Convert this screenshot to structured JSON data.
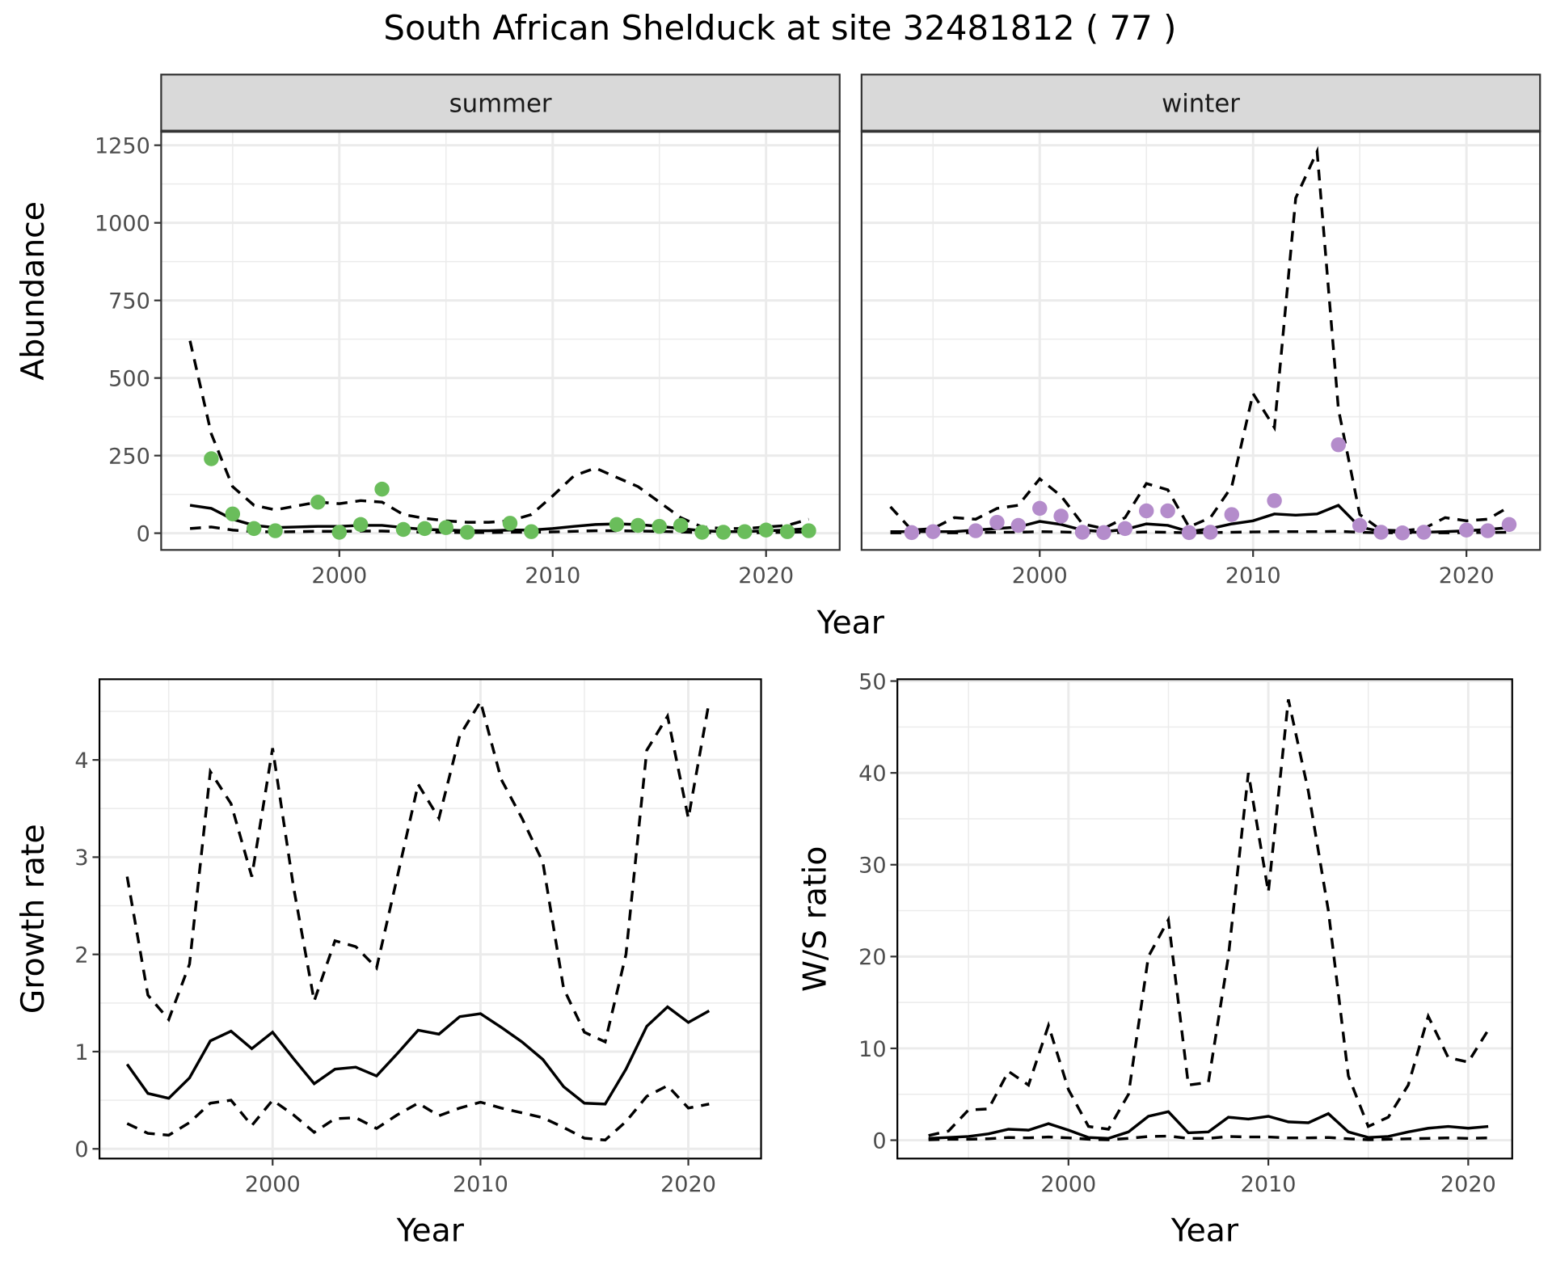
{
  "title": "South African Shelduck at site 32481812 ( 77 )",
  "colors": {
    "summer": "#6ABD5B",
    "winter": "#B48CCB",
    "line": "#000000",
    "strip": "#D9D9D9",
    "grid": "#EBEBEB"
  },
  "chart_data": [
    {
      "type": "line",
      "panel": "summer",
      "strip_label": "summer",
      "xlabel": "Year",
      "ylabel": "Abundance",
      "xlim": [
        1991.65,
        2023.45
      ],
      "ylim": [
        -54,
        1295
      ],
      "xticks": [
        2000,
        2010,
        2020
      ],
      "yticks": [
        0,
        250,
        500,
        750,
        1000,
        1250
      ],
      "x": [
        1993,
        1994,
        1995,
        1996,
        1997,
        1998,
        1999,
        2000,
        2001,
        2002,
        2003,
        2004,
        2005,
        2006,
        2007,
        2008,
        2009,
        2010,
        2011,
        2012,
        2013,
        2014,
        2015,
        2016,
        2017,
        2018,
        2019,
        2020,
        2021,
        2022
      ],
      "series": [
        {
          "name": "mean",
          "style": "solid",
          "values": [
            90,
            80,
            45,
            25,
            18,
            20,
            22,
            22,
            25,
            25,
            18,
            12,
            10,
            8,
            8,
            10,
            10,
            15,
            22,
            28,
            30,
            28,
            22,
            15,
            8,
            5,
            5,
            8,
            10,
            15
          ]
        },
        {
          "name": "upper",
          "style": "dashed",
          "values": [
            620,
            320,
            150,
            90,
            75,
            88,
            100,
            95,
            105,
            100,
            60,
            48,
            40,
            35,
            35,
            40,
            60,
            120,
            185,
            210,
            180,
            150,
            100,
            50,
            20,
            15,
            15,
            20,
            25,
            45
          ]
        },
        {
          "name": "lower",
          "style": "dashed",
          "values": [
            15,
            20,
            10,
            5,
            4,
            5,
            6,
            6,
            7,
            7,
            5,
            3,
            3,
            2,
            2,
            3,
            3,
            4,
            6,
            8,
            8,
            7,
            6,
            4,
            2,
            1,
            1,
            2,
            3,
            4
          ]
        }
      ],
      "points": {
        "x": [
          1994,
          1995,
          1996,
          1997,
          1999,
          2000,
          2001,
          2002,
          2003,
          2004,
          2005,
          2006,
          2008,
          2009,
          2013,
          2014,
          2015,
          2016,
          2017,
          2018,
          2019,
          2020,
          2021,
          2022
        ],
        "y": [
          240,
          62,
          15,
          8,
          100,
          3,
          28,
          142,
          12,
          15,
          18,
          3,
          32,
          5,
          28,
          25,
          22,
          25,
          3,
          3,
          5,
          10,
          5,
          8
        ]
      }
    },
    {
      "type": "line",
      "panel": "winter",
      "strip_label": "winter",
      "xlim": [
        1991.65,
        2023.45
      ],
      "ylim": [
        -54,
        1295
      ],
      "xticks": [
        2000,
        2010,
        2020
      ],
      "x": [
        1993,
        1994,
        1995,
        1996,
        1997,
        1998,
        1999,
        2000,
        2001,
        2002,
        2003,
        2004,
        2005,
        2006,
        2007,
        2008,
        2009,
        2010,
        2011,
        2012,
        2013,
        2014,
        2015,
        2016,
        2017,
        2018,
        2019,
        2020,
        2021,
        2022
      ],
      "series": [
        {
          "name": "mean",
          "style": "solid",
          "values": [
            5,
            5,
            5,
            5,
            10,
            15,
            20,
            38,
            28,
            10,
            5,
            12,
            30,
            25,
            5,
            15,
            30,
            40,
            62,
            58,
            62,
            90,
            20,
            5,
            3,
            3,
            5,
            8,
            12,
            18
          ]
        },
        {
          "name": "upper",
          "style": "dashed",
          "values": [
            85,
            10,
            15,
            50,
            45,
            80,
            90,
            175,
            120,
            30,
            15,
            50,
            160,
            140,
            20,
            50,
            150,
            450,
            340,
            1080,
            1230,
            400,
            60,
            10,
            8,
            15,
            50,
            40,
            45,
            85
          ]
        },
        {
          "name": "lower",
          "style": "dashed",
          "values": [
            1,
            1,
            1,
            1,
            2,
            3,
            3,
            5,
            4,
            2,
            1,
            2,
            4,
            3,
            1,
            2,
            3,
            4,
            5,
            5,
            5,
            6,
            3,
            1,
            1,
            1,
            1,
            2,
            2,
            3
          ]
        }
      ],
      "points": {
        "x": [
          1994,
          1995,
          1997,
          1998,
          1999,
          2000,
          2001,
          2002,
          2003,
          2004,
          2005,
          2006,
          2007,
          2008,
          2009,
          2011,
          2014,
          2015,
          2016,
          2017,
          2018,
          2020,
          2021,
          2022
        ],
        "y": [
          2,
          5,
          8,
          35,
          25,
          80,
          55,
          3,
          2,
          15,
          72,
          72,
          2,
          3,
          60,
          105,
          285,
          25,
          3,
          1,
          3,
          10,
          8,
          28
        ]
      }
    },
    {
      "type": "line",
      "panel": "growth",
      "xlabel": "Year",
      "ylabel": "Growth rate",
      "xlim": [
        1991.67,
        2023.5
      ],
      "ylim": [
        -0.1,
        4.83
      ],
      "xticks": [
        2000,
        2010,
        2020
      ],
      "yticks": [
        0,
        1,
        2,
        3,
        4
      ],
      "x": [
        1993,
        1994,
        1995,
        1996,
        1997,
        1998,
        1999,
        2000,
        2001,
        2002,
        2003,
        2004,
        2005,
        2006,
        2007,
        2008,
        2009,
        2010,
        2011,
        2012,
        2013,
        2014,
        2015,
        2016,
        2017,
        2018,
        2019,
        2020,
        2021
      ],
      "series": [
        {
          "name": "mean",
          "style": "solid",
          "values": [
            0.87,
            0.57,
            0.52,
            0.73,
            1.11,
            1.21,
            1.03,
            1.2,
            0.93,
            0.67,
            0.82,
            0.84,
            0.75,
            0.98,
            1.22,
            1.18,
            1.36,
            1.39,
            1.25,
            1.1,
            0.92,
            0.64,
            0.47,
            0.46,
            0.82,
            1.26,
            1.46,
            1.3,
            1.42
          ]
        },
        {
          "name": "upper",
          "style": "dashed",
          "values": [
            2.8,
            1.58,
            1.33,
            1.9,
            3.88,
            3.55,
            2.8,
            4.12,
            2.7,
            1.52,
            2.14,
            2.08,
            1.86,
            2.8,
            3.75,
            3.4,
            4.25,
            4.6,
            3.8,
            3.4,
            2.95,
            1.65,
            1.2,
            1.1,
            2.0,
            4.1,
            4.45,
            3.4,
            4.6
          ]
        },
        {
          "name": "lower",
          "style": "dashed",
          "values": [
            0.26,
            0.16,
            0.14,
            0.27,
            0.47,
            0.5,
            0.24,
            0.5,
            0.35,
            0.17,
            0.31,
            0.32,
            0.21,
            0.35,
            0.47,
            0.34,
            0.42,
            0.48,
            0.42,
            0.37,
            0.32,
            0.22,
            0.11,
            0.09,
            0.28,
            0.54,
            0.65,
            0.42,
            0.46
          ]
        }
      ]
    },
    {
      "type": "line",
      "panel": "ratio",
      "xlabel": "Year",
      "ylabel": "W/S ratio",
      "xlim": [
        1991.44,
        2022.2
      ],
      "ylim": [
        -2,
        50.2
      ],
      "xticks": [
        2000,
        2010,
        2020
      ],
      "yticks": [
        0,
        10,
        20,
        30,
        40,
        50
      ],
      "x": [
        1993,
        1994,
        1995,
        1996,
        1997,
        1998,
        1999,
        2000,
        2001,
        2002,
        2003,
        2004,
        2005,
        2006,
        2007,
        2008,
        2009,
        2010,
        2011,
        2012,
        2013,
        2014,
        2015,
        2016,
        2017,
        2018,
        2019,
        2020,
        2021
      ],
      "series": [
        {
          "name": "mean",
          "style": "solid",
          "values": [
            0.2,
            0.3,
            0.4,
            0.7,
            1.2,
            1.1,
            1.8,
            1.1,
            0.3,
            0.2,
            0.9,
            2.6,
            3.1,
            0.8,
            0.9,
            2.5,
            2.3,
            2.6,
            2.0,
            1.9,
            2.9,
            0.9,
            0.3,
            0.4,
            0.9,
            1.3,
            1.5,
            1.3,
            1.5
          ]
        },
        {
          "name": "upper",
          "style": "dashed",
          "values": [
            0.5,
            1.0,
            3.3,
            3.4,
            7.5,
            6,
            12.5,
            5.5,
            1.5,
            1.2,
            5,
            20,
            24,
            6,
            6.3,
            20,
            40,
            27,
            48,
            38,
            25,
            7,
            1.5,
            2.5,
            6,
            13.5,
            9,
            8.5,
            12
          ]
        },
        {
          "name": "lower",
          "style": "dashed",
          "values": [
            0.05,
            0.1,
            0.1,
            0.15,
            0.3,
            0.25,
            0.35,
            0.25,
            0.1,
            0.05,
            0.2,
            0.4,
            0.45,
            0.2,
            0.2,
            0.4,
            0.35,
            0.35,
            0.25,
            0.25,
            0.3,
            0.15,
            0.05,
            0.1,
            0.15,
            0.2,
            0.25,
            0.2,
            0.25
          ]
        }
      ]
    }
  ]
}
